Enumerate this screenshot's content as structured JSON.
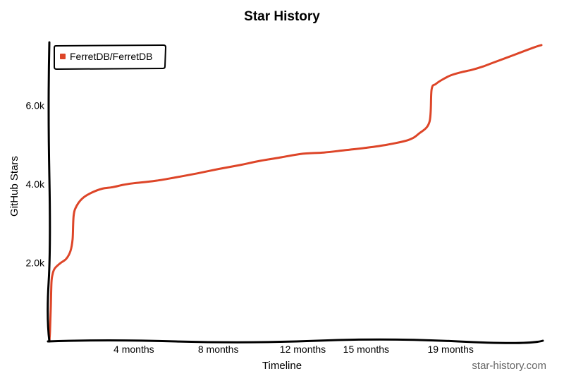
{
  "chart_data": {
    "type": "line",
    "title": "Star History",
    "xlabel": "Timeline",
    "ylabel": "GitHub Stars",
    "x_tick_labels": [
      "4 months",
      "8 months",
      "12 months",
      "15 months",
      "19 months"
    ],
    "x_tick_positions_months": [
      4,
      8,
      12,
      15,
      19
    ],
    "xlim": [
      0,
      23.3
    ],
    "y_tick_labels": [
      "2.0k",
      "4.0k",
      "6.0k"
    ],
    "y_tick_values": [
      2000,
      4000,
      6000
    ],
    "ylim": [
      0,
      7600
    ],
    "grid": false,
    "legend_position": "top-left",
    "watermark": "star-history.com",
    "series": [
      {
        "name": "FerretDB/FerretDB",
        "color": "#dd4528",
        "x": [
          0,
          0.03,
          0.07,
          0.1,
          0.15,
          0.25,
          0.5,
          0.8,
          1.0,
          1.1,
          1.15,
          1.3,
          1.6,
          2.0,
          2.5,
          3.0,
          3.5,
          4.0,
          5.0,
          6.0,
          7.0,
          8.0,
          9.0,
          10.0,
          11.0,
          12.0,
          13.0,
          14.0,
          15.0,
          16.0,
          17.0,
          17.5,
          18.0,
          18.1,
          18.3,
          18.6,
          19.0,
          19.5,
          20.0,
          20.5,
          21.0,
          22.0,
          23.0,
          23.3
        ],
        "y": [
          0,
          250,
          900,
          1500,
          1700,
          1850,
          1980,
          2100,
          2300,
          2600,
          3200,
          3450,
          3650,
          3780,
          3880,
          3920,
          3980,
          4020,
          4080,
          4170,
          4270,
          4380,
          4480,
          4590,
          4680,
          4770,
          4800,
          4860,
          4920,
          5000,
          5120,
          5280,
          5580,
          6400,
          6540,
          6650,
          6760,
          6840,
          6900,
          6980,
          7080,
          7280,
          7480,
          7530
        ]
      }
    ]
  }
}
